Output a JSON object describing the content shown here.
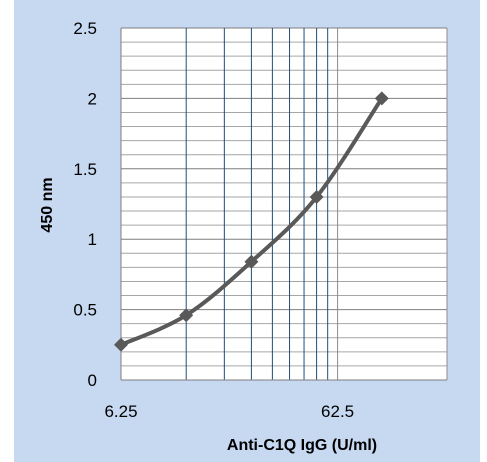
{
  "chart_data": {
    "type": "line",
    "x_scale": "log",
    "xlabel": "Anti-C1Q IgG (U/ml)",
    "ylabel": "450 nm",
    "xlim": [
      6.25,
      200
    ],
    "ylim": [
      0,
      2.5
    ],
    "x_tick_labels": [
      {
        "value": 6.25,
        "label": "6.25"
      },
      {
        "value": 62.5,
        "label": "62.5"
      }
    ],
    "y_ticks": [
      0,
      0.5,
      1,
      1.5,
      2,
      2.5
    ],
    "y_tick_labels": [
      "0",
      "0.5",
      "1",
      "1.5",
      "2",
      "2.5"
    ],
    "grid": "on",
    "line_color": "#595959",
    "marker": "diamond",
    "plot_background": "#ffffff",
    "frame_background": "#c6d9f1",
    "series": [
      {
        "x": [
          6.25,
          12.5,
          25,
          50,
          100
        ],
        "y": [
          0.25,
          0.46,
          0.84,
          1.3,
          2.0
        ]
      }
    ]
  }
}
